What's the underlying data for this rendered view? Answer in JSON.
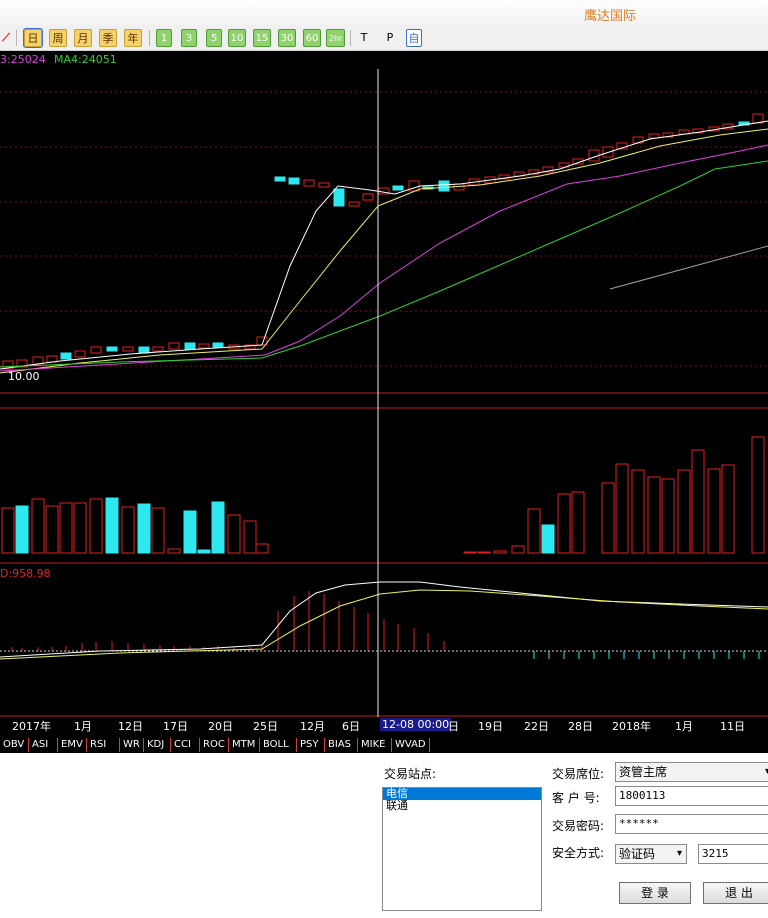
{
  "app": {
    "title": "鹰达国际"
  },
  "toolbar": {
    "draw_icon": "draw-line-icon",
    "periods": [
      "日",
      "周",
      "月",
      "季",
      "年"
    ],
    "minutes": [
      "1",
      "3",
      "5",
      "10",
      "15",
      "30",
      "60",
      "2hr"
    ],
    "extras": [
      "T",
      "P"
    ],
    "auto_label": "自"
  },
  "chart": {
    "legend": {
      "ma3": "3:25024",
      "ma4": "MA4:24051"
    },
    "min_price_label": "10.00",
    "macd_label": "D:958.98",
    "date_axis": [
      "2017年",
      "1月",
      "12日",
      "17日",
      "20日",
      "25日",
      "12月",
      "6日",
      "12-08 00:00",
      "日",
      "19日",
      "22日",
      "28日",
      "2018年",
      "1月",
      "11日"
    ],
    "colors": {
      "up": "#e02020",
      "down": "#2ee8f0",
      "ma1": "#ffffff",
      "ma2": "#f0f060",
      "ma3": "#e040e0",
      "ma4": "#30d030"
    }
  },
  "indicator_tabs": [
    "OBV",
    "ASI",
    "EMV",
    "RSI",
    "WR",
    "KDJ",
    "CCI",
    "ROC",
    "MTM",
    "BOLL",
    "PSY",
    "BIAS",
    "MIKE",
    "WVAD"
  ],
  "login": {
    "station_label": "交易站点:",
    "stations": [
      "电信",
      "联通"
    ],
    "seat_label": "交易席位:",
    "seat_value": "资管主席",
    "account_label": "客 户 号:",
    "account_value": "1800113",
    "password_label": "交易密码:",
    "password_value": "******",
    "security_label": "安全方式:",
    "security_value": "验证码",
    "captcha_value": "3215",
    "login_button": "登 录",
    "exit_button": "退 出"
  }
}
